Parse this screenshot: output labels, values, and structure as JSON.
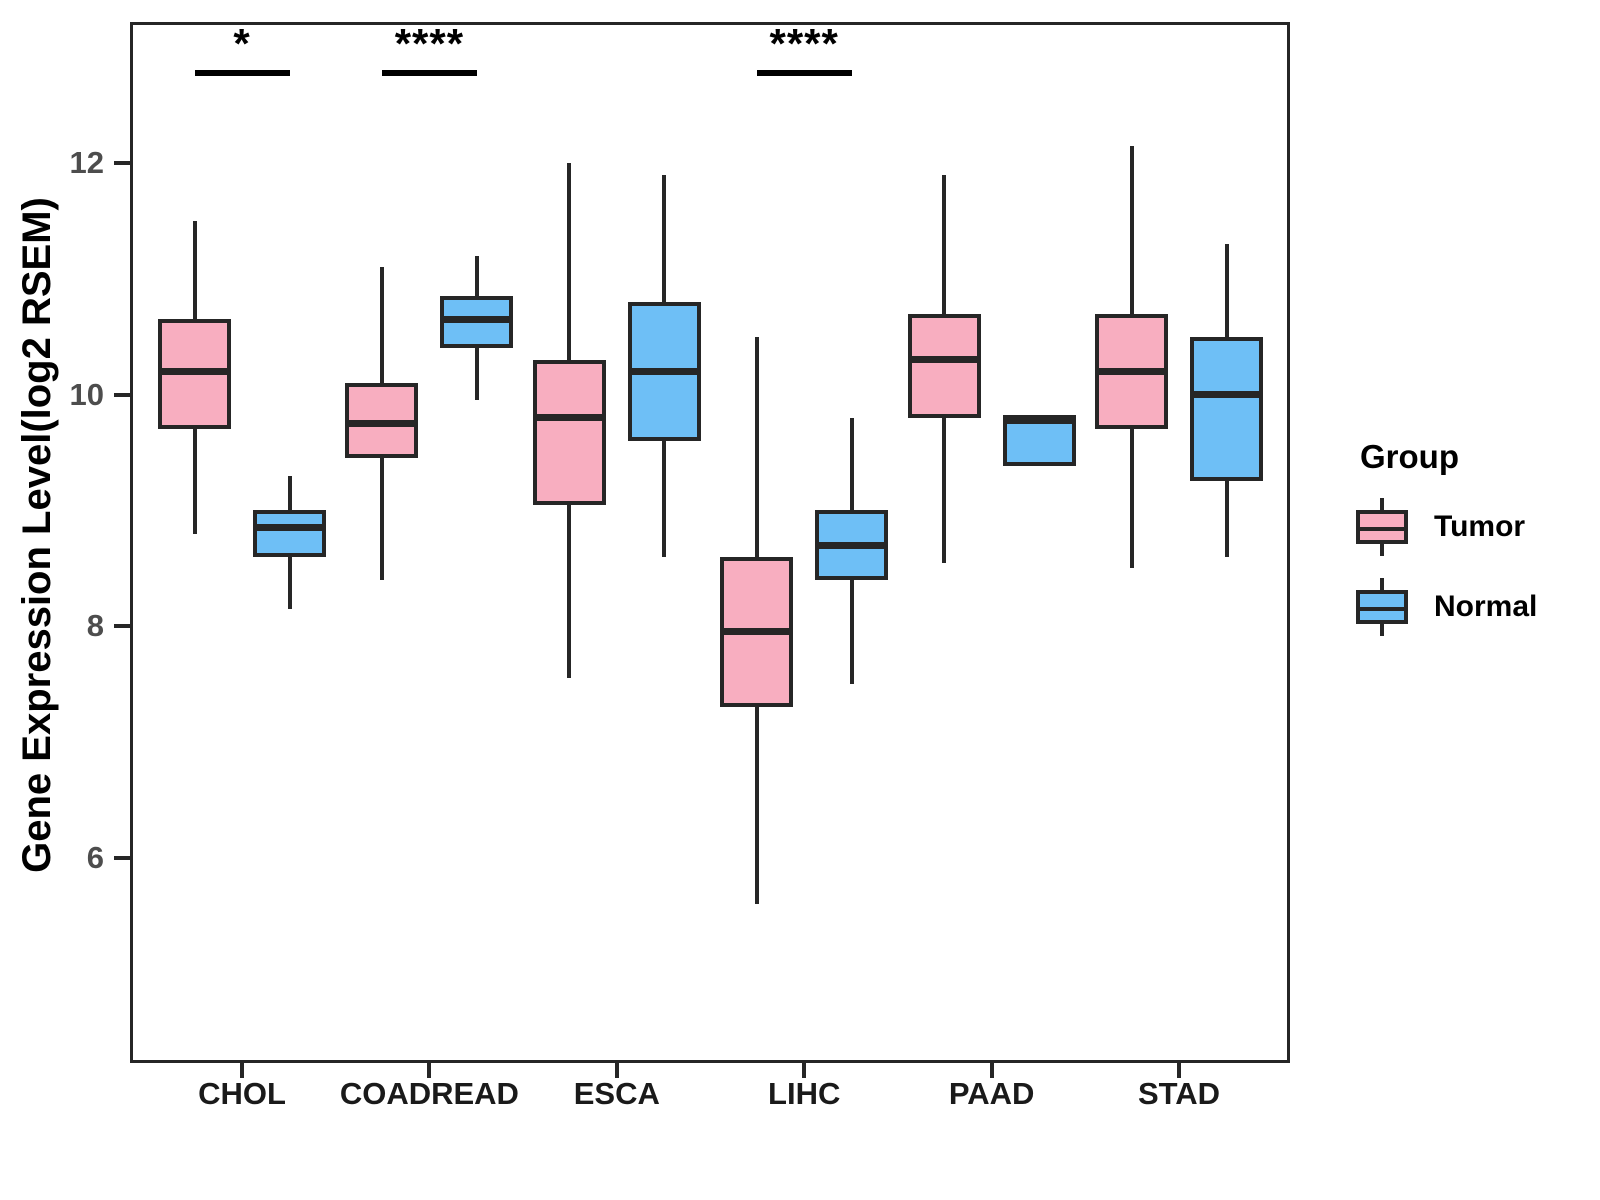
{
  "chart_data": {
    "type": "boxplot",
    "title": "",
    "xlabel": "",
    "ylabel": "Gene Expression Level(log2 RSEM)",
    "categories": [
      "CHOL",
      "COADREAD",
      "ESCA",
      "LIHC",
      "PAAD",
      "STAD"
    ],
    "y_ticks": [
      12,
      10,
      8,
      6
    ],
    "ylim": [
      4.2,
      13.2
    ],
    "grid": false,
    "panel_border": true,
    "line_color": "#262626",
    "significance_color": "#000000",
    "legend": {
      "title": "Group",
      "position": "right",
      "entries": [
        {
          "label": "Tumor",
          "color": "#F8AEC0"
        },
        {
          "label": "Normal",
          "color": "#6EBFF6"
        }
      ]
    },
    "series": [
      {
        "name": "Tumor",
        "color": "#F8AEC0",
        "boxes": [
          {
            "category": "CHOL",
            "min": 8.8,
            "q1": 9.7,
            "median": 10.2,
            "q3": 10.65,
            "max": 11.5
          },
          {
            "category": "COADREAD",
            "min": 8.4,
            "q1": 9.45,
            "median": 9.75,
            "q3": 10.1,
            "max": 11.1
          },
          {
            "category": "ESCA",
            "min": 7.55,
            "q1": 9.05,
            "median": 9.8,
            "q3": 10.3,
            "max": 12.0
          },
          {
            "category": "LIHC",
            "min": 5.6,
            "q1": 7.3,
            "median": 7.95,
            "q3": 8.6,
            "max": 10.5
          },
          {
            "category": "PAAD",
            "min": 8.55,
            "q1": 9.8,
            "median": 10.3,
            "q3": 10.7,
            "max": 11.9
          },
          {
            "category": "STAD",
            "min": 8.5,
            "q1": 9.7,
            "median": 10.2,
            "q3": 10.7,
            "max": 12.15
          }
        ]
      },
      {
        "name": "Normal",
        "color": "#6EBFF6",
        "boxes": [
          {
            "category": "CHOL",
            "min": 8.15,
            "q1": 8.6,
            "median": 8.85,
            "q3": 9.0,
            "max": 9.3
          },
          {
            "category": "COADREAD",
            "min": 9.95,
            "q1": 10.4,
            "median": 10.65,
            "q3": 10.85,
            "max": 11.2
          },
          {
            "category": "ESCA",
            "min": 8.6,
            "q1": 9.6,
            "median": 10.2,
            "q3": 10.8,
            "max": 11.9
          },
          {
            "category": "LIHC",
            "min": 7.5,
            "q1": 8.4,
            "median": 8.7,
            "q3": 9.0,
            "max": 9.8
          },
          {
            "category": "PAAD",
            "min": 9.38,
            "q1": 9.38,
            "median": 9.78,
            "q3": 9.82,
            "max": 9.82
          },
          {
            "category": "STAD",
            "min": 8.6,
            "q1": 9.25,
            "median": 10.0,
            "q3": 10.5,
            "max": 11.3
          }
        ]
      }
    ],
    "significance": [
      {
        "category": "CHOL",
        "label": "*"
      },
      {
        "category": "COADREAD",
        "label": "****"
      },
      {
        "category": "LIHC",
        "label": "****"
      }
    ]
  }
}
